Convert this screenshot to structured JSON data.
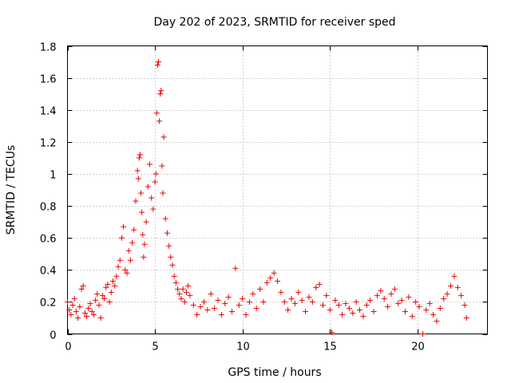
{
  "chart_data": {
    "type": "scatter",
    "title": "Day 202 of 2023, SRMTID for receiver sped",
    "xlabel": "GPS time / hours",
    "ylabel": "SRMTID / TECUs",
    "xlim": [
      0,
      24
    ],
    "ylim": [
      0,
      1.8
    ],
    "x_ticks": [
      0,
      5,
      10,
      15,
      20
    ],
    "x_tick_labels": [
      "0",
      "5",
      "10",
      "15",
      "20"
    ],
    "y_ticks": [
      0,
      0.2,
      0.4,
      0.6,
      0.8,
      1,
      1.2,
      1.4,
      1.6,
      1.8
    ],
    "y_tick_labels": [
      "0",
      "0.2",
      "0.4",
      "0.6",
      "0.8",
      "1",
      "1.2",
      "1.4",
      "1.6",
      "1.8"
    ],
    "grid": true,
    "marker": "+",
    "marker_color": "#ee0000",
    "series": [
      {
        "name": "SRMTID",
        "points": [
          [
            0.0,
            0.2
          ],
          [
            0.1,
            0.15
          ],
          [
            0.2,
            0.12
          ],
          [
            0.3,
            0.18
          ],
          [
            0.4,
            0.22
          ],
          [
            0.5,
            0.14
          ],
          [
            0.6,
            0.1
          ],
          [
            0.7,
            0.17
          ],
          [
            0.8,
            0.28
          ],
          [
            0.9,
            0.3
          ],
          [
            1.0,
            0.13
          ],
          [
            1.1,
            0.11
          ],
          [
            1.2,
            0.16
          ],
          [
            1.3,
            0.19
          ],
          [
            1.4,
            0.14
          ],
          [
            1.5,
            0.12
          ],
          [
            1.6,
            0.21
          ],
          [
            1.7,
            0.25
          ],
          [
            1.8,
            0.18
          ],
          [
            1.9,
            0.1
          ],
          [
            2.0,
            0.24
          ],
          [
            2.1,
            0.22
          ],
          [
            2.2,
            0.29
          ],
          [
            2.3,
            0.31
          ],
          [
            2.4,
            0.2
          ],
          [
            2.5,
            0.26
          ],
          [
            2.6,
            0.33
          ],
          [
            2.7,
            0.3
          ],
          [
            2.8,
            0.36
          ],
          [
            2.9,
            0.42
          ],
          [
            3.0,
            0.46
          ],
          [
            3.1,
            0.6
          ],
          [
            3.2,
            0.67
          ],
          [
            3.3,
            0.4
          ],
          [
            3.4,
            0.38
          ],
          [
            3.5,
            0.52
          ],
          [
            3.6,
            0.46
          ],
          [
            3.7,
            0.57
          ],
          [
            3.8,
            0.65
          ],
          [
            3.9,
            0.83
          ],
          [
            4.0,
            1.02
          ],
          [
            4.05,
            0.97
          ],
          [
            4.1,
            1.1
          ],
          [
            4.15,
            1.12
          ],
          [
            4.2,
            0.88
          ],
          [
            4.25,
            0.76
          ],
          [
            4.3,
            0.62
          ],
          [
            4.35,
            0.48
          ],
          [
            4.4,
            0.56
          ],
          [
            4.5,
            0.7
          ],
          [
            4.6,
            0.92
          ],
          [
            4.7,
            1.06
          ],
          [
            4.8,
            0.85
          ],
          [
            4.9,
            0.78
          ],
          [
            5.0,
            0.95
          ],
          [
            5.05,
            1.0
          ],
          [
            5.1,
            1.38
          ],
          [
            5.15,
            1.68
          ],
          [
            5.2,
            1.7
          ],
          [
            5.25,
            1.33
          ],
          [
            5.3,
            1.5
          ],
          [
            5.35,
            1.52
          ],
          [
            5.4,
            1.05
          ],
          [
            5.45,
            0.88
          ],
          [
            5.5,
            1.23
          ],
          [
            5.6,
            0.72
          ],
          [
            5.7,
            0.63
          ],
          [
            5.8,
            0.55
          ],
          [
            5.9,
            0.48
          ],
          [
            6.0,
            0.43
          ],
          [
            6.1,
            0.36
          ],
          [
            6.2,
            0.32
          ],
          [
            6.3,
            0.28
          ],
          [
            6.4,
            0.25
          ],
          [
            6.5,
            0.22
          ],
          [
            6.6,
            0.28
          ],
          [
            6.7,
            0.2
          ],
          [
            6.8,
            0.26
          ],
          [
            6.9,
            0.3
          ],
          [
            7.0,
            0.24
          ],
          [
            7.2,
            0.18
          ],
          [
            7.4,
            0.12
          ],
          [
            7.6,
            0.17
          ],
          [
            7.8,
            0.2
          ],
          [
            8.0,
            0.15
          ],
          [
            8.2,
            0.25
          ],
          [
            8.4,
            0.16
          ],
          [
            8.6,
            0.21
          ],
          [
            8.8,
            0.12
          ],
          [
            9.0,
            0.19
          ],
          [
            9.2,
            0.23
          ],
          [
            9.4,
            0.14
          ],
          [
            9.6,
            0.41
          ],
          [
            9.8,
            0.18
          ],
          [
            10.0,
            0.22
          ],
          [
            10.2,
            0.12
          ],
          [
            10.4,
            0.2
          ],
          [
            10.6,
            0.25
          ],
          [
            10.8,
            0.16
          ],
          [
            11.0,
            0.28
          ],
          [
            11.2,
            0.2
          ],
          [
            11.4,
            0.32
          ],
          [
            11.6,
            0.35
          ],
          [
            11.8,
            0.38
          ],
          [
            12.0,
            0.33
          ],
          [
            12.2,
            0.26
          ],
          [
            12.4,
            0.2
          ],
          [
            12.6,
            0.15
          ],
          [
            12.8,
            0.22
          ],
          [
            13.0,
            0.19
          ],
          [
            13.2,
            0.26
          ],
          [
            13.4,
            0.21
          ],
          [
            13.6,
            0.14
          ],
          [
            13.8,
            0.23
          ],
          [
            14.0,
            0.2
          ],
          [
            14.2,
            0.29
          ],
          [
            14.4,
            0.31
          ],
          [
            14.6,
            0.18
          ],
          [
            14.8,
            0.24
          ],
          [
            15.0,
            0.15
          ],
          [
            15.1,
            0.01
          ],
          [
            15.3,
            0.21
          ],
          [
            15.5,
            0.18
          ],
          [
            15.7,
            0.12
          ],
          [
            15.9,
            0.19
          ],
          [
            16.1,
            0.16
          ],
          [
            16.3,
            0.13
          ],
          [
            16.5,
            0.2
          ],
          [
            16.7,
            0.15
          ],
          [
            16.9,
            0.11
          ],
          [
            17.1,
            0.18
          ],
          [
            17.3,
            0.21
          ],
          [
            17.5,
            0.14
          ],
          [
            17.7,
            0.24
          ],
          [
            17.9,
            0.27
          ],
          [
            18.1,
            0.22
          ],
          [
            18.3,
            0.17
          ],
          [
            18.5,
            0.25
          ],
          [
            18.7,
            0.28
          ],
          [
            18.9,
            0.19
          ],
          [
            19.1,
            0.21
          ],
          [
            19.3,
            0.14
          ],
          [
            19.5,
            0.23
          ],
          [
            19.7,
            0.11
          ],
          [
            19.9,
            0.2
          ],
          [
            20.1,
            0.17
          ],
          [
            20.3,
            0.0
          ],
          [
            20.5,
            0.15
          ],
          [
            20.7,
            0.19
          ],
          [
            20.9,
            0.12
          ],
          [
            21.1,
            0.08
          ],
          [
            21.3,
            0.16
          ],
          [
            21.5,
            0.22
          ],
          [
            21.7,
            0.25
          ],
          [
            21.9,
            0.3
          ],
          [
            22.1,
            0.36
          ],
          [
            22.3,
            0.29
          ],
          [
            22.5,
            0.24
          ],
          [
            22.7,
            0.18
          ],
          [
            22.8,
            0.1
          ]
        ]
      }
    ]
  }
}
